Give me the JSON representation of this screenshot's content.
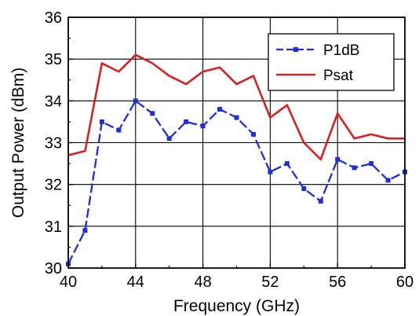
{
  "chart_data": {
    "type": "line",
    "xlabel": "Frequency (GHz)",
    "ylabel": "Output Power (dBm)",
    "xlim": [
      40,
      60
    ],
    "ylim": [
      30,
      36
    ],
    "x_ticks": [
      40,
      44,
      48,
      52,
      56,
      60
    ],
    "y_ticks": [
      30,
      31,
      32,
      33,
      34,
      35,
      36
    ],
    "grid": true,
    "legend_position": "top-right",
    "x": [
      40,
      41,
      42,
      43,
      44,
      45,
      46,
      47,
      48,
      49,
      50,
      51,
      52,
      53,
      54,
      55,
      56,
      57,
      58,
      59,
      60
    ],
    "series": [
      {
        "name": "P1dB",
        "color": "#1f2fd8",
        "line_style": "dashed",
        "marker": "square",
        "values": [
          30.1,
          30.9,
          33.5,
          33.3,
          34.0,
          33.7,
          33.1,
          33.5,
          33.4,
          33.8,
          33.6,
          33.2,
          32.3,
          32.5,
          31.9,
          31.6,
          32.6,
          32.4,
          32.5,
          32.1,
          32.3
        ]
      },
      {
        "name": "Psat",
        "color": "#d62020",
        "line_style": "solid",
        "marker": "none",
        "values": [
          32.7,
          32.8,
          34.9,
          34.7,
          35.1,
          34.9,
          34.6,
          34.4,
          34.7,
          34.8,
          34.4,
          34.6,
          33.6,
          33.9,
          33.0,
          32.6,
          33.7,
          33.1,
          33.2,
          33.1,
          33.1
        ]
      }
    ]
  }
}
